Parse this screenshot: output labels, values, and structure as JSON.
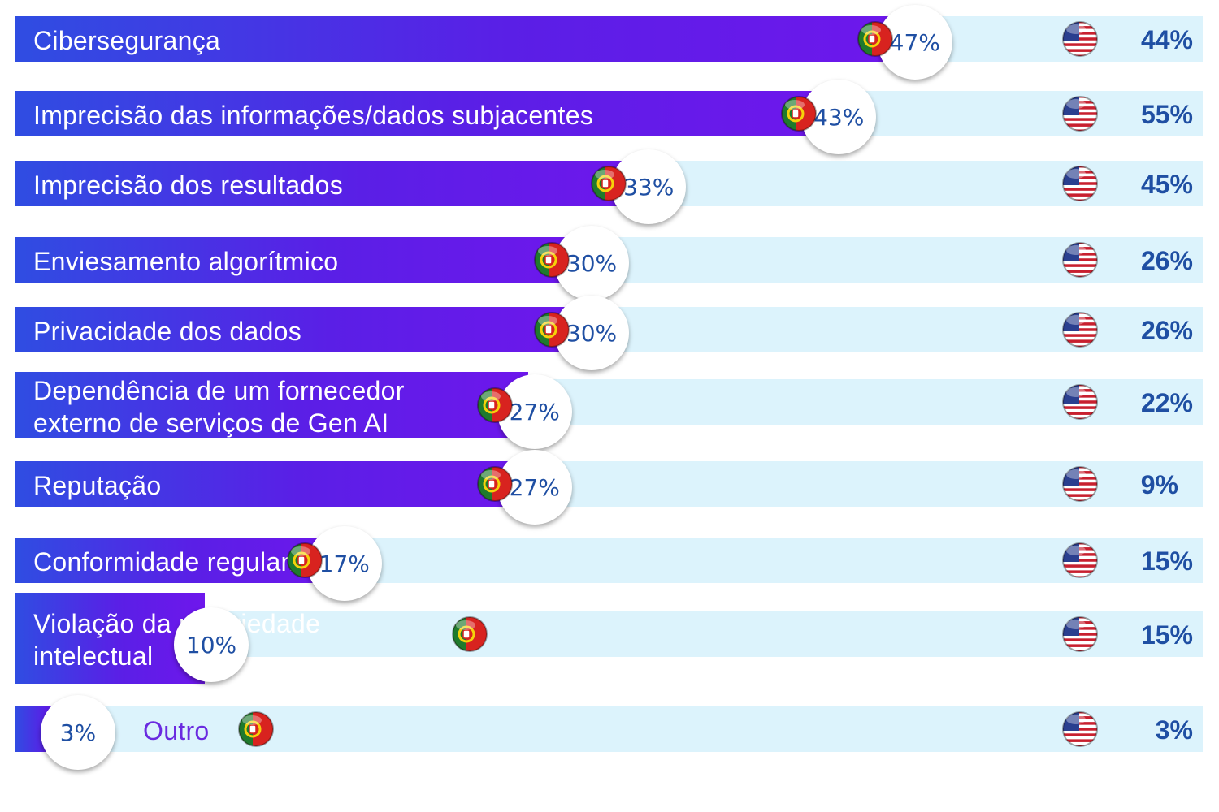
{
  "chart_data": {
    "type": "bar",
    "categories": [
      "Cibersegurança",
      "Imprecisão das informações/dados subjacentes",
      "Imprecisão dos resultados",
      "Enviesamento algorítmico",
      "Privacidade dos dados",
      "Dependência de um fornecedor externo de serviços de Gen AI",
      "Reputação",
      "Conformidade regulamentar",
      "Violação da propriedade intelectual",
      "Outro"
    ],
    "category_lines": [
      [
        "Cibersegurança"
      ],
      [
        "Imprecisão das informações/dados subjacentes"
      ],
      [
        "Imprecisão dos resultados"
      ],
      [
        "Enviesamento algorítmico"
      ],
      [
        "Privacidade dos dados"
      ],
      [
        "Dependência de um fornecedor",
        "externo de serviços de Gen AI"
      ],
      [
        "Reputação"
      ],
      [
        "Conformidade regulamentar"
      ],
      [
        "Violação da propriedade",
        "intelectual"
      ],
      [
        "Outro"
      ]
    ],
    "series": [
      {
        "flag": "portugal-flag-icon",
        "values": [
          47,
          43,
          33,
          30,
          30,
          27,
          27,
          17,
          10,
          3
        ],
        "labels": [
          "47%",
          "43%",
          "33%",
          "30%",
          "30%",
          "27%",
          "27%",
          "17%",
          "10%",
          "3%"
        ]
      },
      {
        "flag": "usa-flag-icon",
        "values": [
          44,
          55,
          45,
          26,
          26,
          22,
          9,
          15,
          15,
          3
        ],
        "labels": [
          "44%",
          "55%",
          "45%",
          "26%",
          "26%",
          "22%",
          "9%",
          "15%",
          "15%",
          "3%"
        ]
      }
    ],
    "xlim": [
      0,
      65
    ],
    "colors": {
      "bar_start": "#2f4de2",
      "bar_end": "#6e17ec",
      "track": "#dcf3fc",
      "value_text": "#1f4fa3",
      "outside_label": "#6a2ae0"
    }
  }
}
